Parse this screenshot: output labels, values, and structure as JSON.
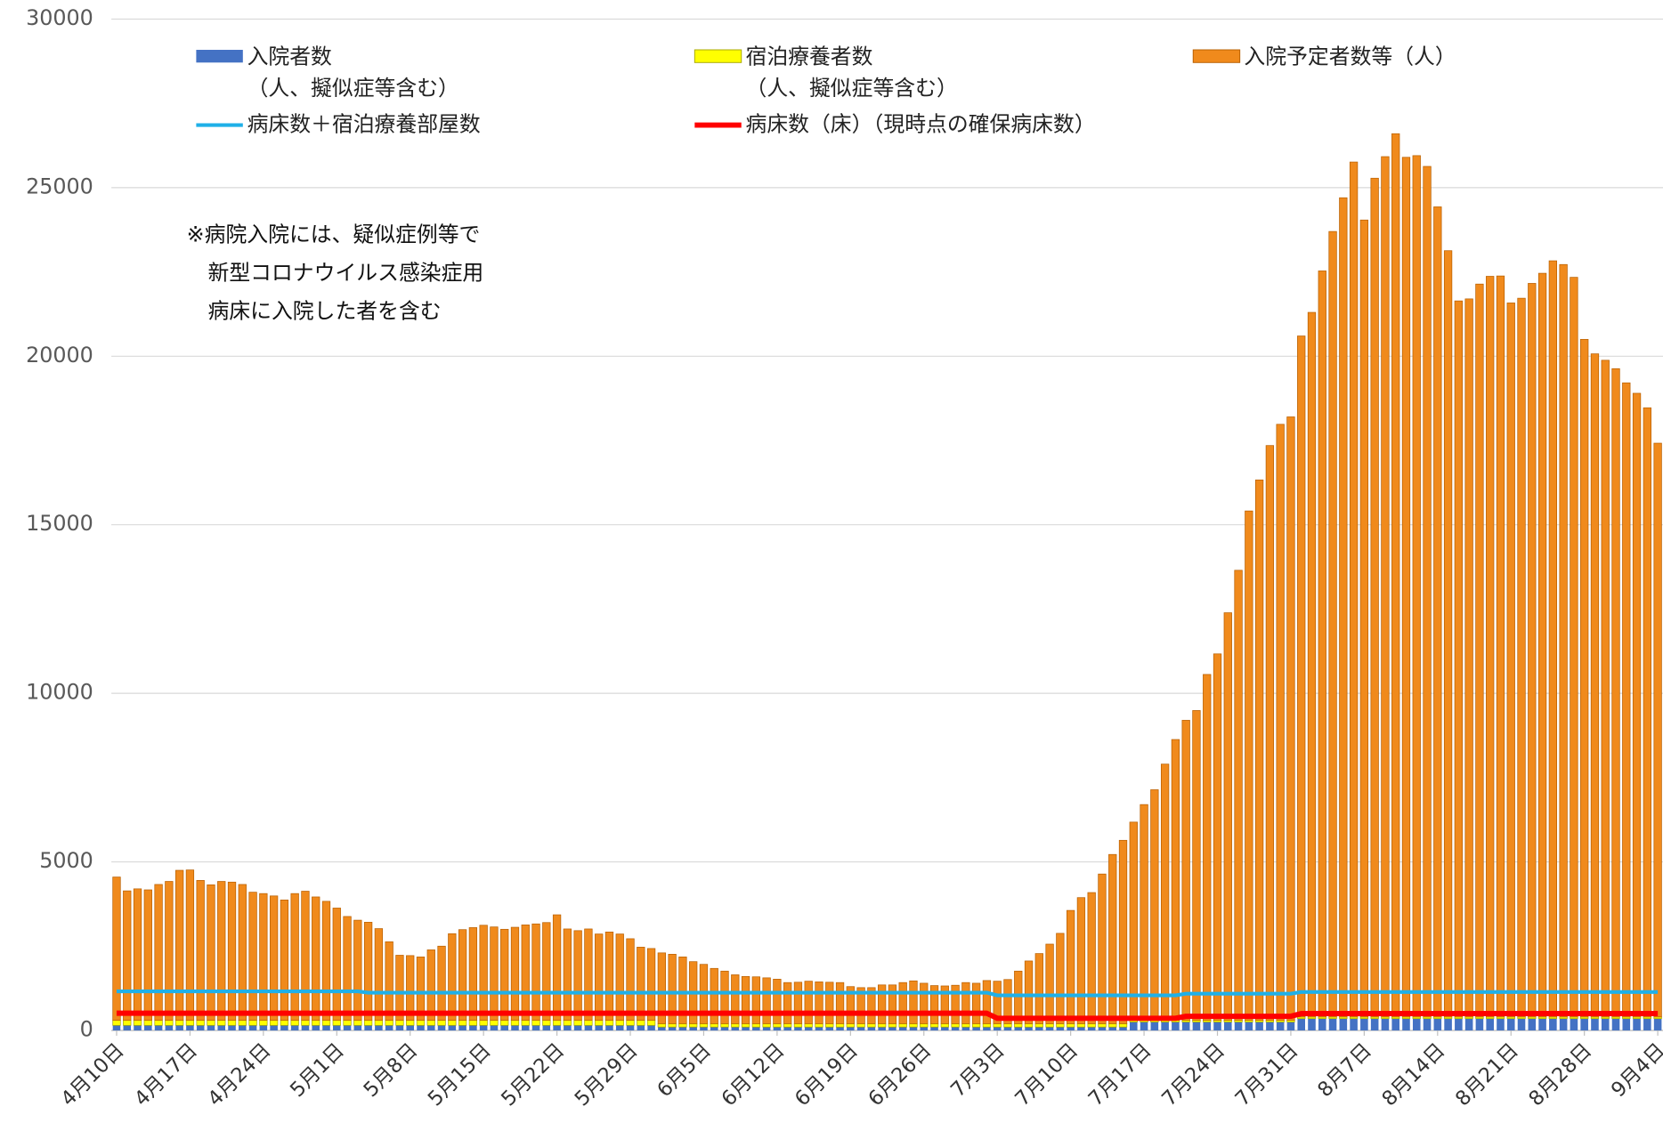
{
  "chart_data": {
    "type": "bar",
    "stacked": true,
    "annotation": "※病院入院には、疑似症例等で\n　新型コロナウイルス感染症用\n　病床に入院した者を含む",
    "ylim": [
      0,
      30000
    ],
    "yticks": [
      0,
      5000,
      10000,
      15000,
      20000,
      25000,
      30000
    ],
    "grid": true,
    "categories": [
      "4月10日",
      null,
      null,
      null,
      null,
      null,
      null,
      "4月17日",
      null,
      null,
      null,
      null,
      null,
      null,
      "4月24日",
      null,
      null,
      null,
      null,
      null,
      null,
      "5月1日",
      null,
      null,
      null,
      null,
      null,
      null,
      "5月8日",
      null,
      null,
      null,
      null,
      null,
      null,
      "5月15日",
      null,
      null,
      null,
      null,
      null,
      null,
      "5月22日",
      null,
      null,
      null,
      null,
      null,
      null,
      "5月29日",
      null,
      null,
      null,
      null,
      null,
      null,
      "6月5日",
      null,
      null,
      null,
      null,
      null,
      null,
      "6月12日",
      null,
      null,
      null,
      null,
      null,
      null,
      "6月19日",
      null,
      null,
      null,
      null,
      null,
      null,
      "6月26日",
      null,
      null,
      null,
      null,
      null,
      null,
      "7月3日",
      null,
      null,
      null,
      null,
      null,
      null,
      "7月10日",
      null,
      null,
      null,
      null,
      null,
      null,
      "7月17日",
      null,
      null,
      null,
      null,
      null,
      null,
      "7月24日",
      null,
      null,
      null,
      null,
      null,
      null,
      "7月31日",
      null,
      null,
      null,
      null,
      null,
      null,
      "8月7日",
      null,
      null,
      null,
      null,
      null,
      null,
      "8月14日",
      null,
      null,
      null,
      null,
      null,
      null,
      "8月21日",
      null,
      null,
      null,
      null,
      null,
      null,
      "8月28日",
      null,
      null,
      null,
      null,
      null,
      null,
      "9月4日"
    ],
    "series": [
      {
        "name": "入院者数\n（人、擬似症等含む）",
        "type": "bar",
        "color": "#4472c4",
        "values": [
          150,
          150,
          150,
          150,
          150,
          150,
          150,
          150,
          150,
          150,
          150,
          150,
          150,
          150,
          150,
          150,
          150,
          150,
          150,
          150,
          150,
          150,
          150,
          150,
          150,
          150,
          150,
          150,
          150,
          150,
          150,
          150,
          150,
          150,
          150,
          150,
          150,
          150,
          150,
          150,
          150,
          150,
          150,
          150,
          150,
          150,
          150,
          150,
          150,
          150,
          150,
          150,
          100,
          100,
          100,
          100,
          100,
          100,
          100,
          100,
          100,
          100,
          100,
          100,
          100,
          100,
          100,
          100,
          100,
          100,
          100,
          100,
          100,
          100,
          100,
          100,
          100,
          100,
          100,
          100,
          100,
          100,
          100,
          100,
          100,
          100,
          100,
          100,
          100,
          100,
          100,
          100,
          100,
          100,
          100,
          100,
          100,
          250,
          250,
          250,
          250,
          250,
          250,
          250,
          250,
          250,
          250,
          250,
          250,
          250,
          250,
          250,
          250,
          350,
          350,
          350,
          350,
          350,
          350,
          350,
          350,
          350,
          350,
          350,
          350,
          350,
          350,
          350,
          350,
          350,
          350,
          350,
          350,
          350,
          350,
          350,
          350,
          350,
          350,
          350,
          350,
          350,
          350,
          350,
          350,
          350,
          350,
          350
        ]
      },
      {
        "name": "宿泊療養者数\n（人、擬似症等含む）",
        "type": "bar",
        "color": "#ffff00",
        "values": [
          150,
          150,
          150,
          150,
          150,
          150,
          150,
          150,
          150,
          150,
          150,
          150,
          150,
          150,
          150,
          150,
          150,
          150,
          150,
          150,
          150,
          150,
          150,
          150,
          150,
          150,
          150,
          150,
          150,
          150,
          150,
          150,
          150,
          150,
          150,
          150,
          150,
          150,
          150,
          150,
          150,
          150,
          150,
          150,
          150,
          150,
          150,
          150,
          150,
          150,
          150,
          150,
          100,
          100,
          100,
          100,
          100,
          100,
          100,
          100,
          100,
          100,
          100,
          100,
          100,
          100,
          100,
          100,
          100,
          100,
          100,
          100,
          100,
          100,
          100,
          100,
          100,
          100,
          100,
          100,
          100,
          100,
          100,
          100,
          100,
          100,
          100,
          100,
          100,
          100,
          100,
          100,
          100,
          100,
          100,
          100,
          100,
          50,
          50,
          50,
          50,
          50,
          50,
          50,
          50,
          50,
          50,
          50,
          50,
          50,
          50,
          50,
          50,
          50,
          50,
          50,
          50,
          50,
          50,
          50,
          50,
          50,
          50,
          50,
          50,
          50,
          50,
          50,
          50,
          50,
          50,
          50,
          50,
          50,
          50,
          50,
          50,
          50,
          50,
          50,
          50,
          50,
          50,
          50,
          50,
          50,
          50,
          50
        ]
      },
      {
        "name": "入院予定者数等（人）",
        "type": "bar",
        "color": "#f08a1c",
        "values": [
          4250,
          3840,
          3900,
          3870,
          4030,
          4120,
          4450,
          4460,
          4150,
          4020,
          4120,
          4100,
          4030,
          3800,
          3760,
          3690,
          3570,
          3760,
          3830,
          3660,
          3530,
          3330,
          3080,
          2970,
          2910,
          2720,
          2330,
          1930,
          1920,
          1880,
          2090,
          2200,
          2570,
          2690,
          2750,
          2820,
          2770,
          2700,
          2760,
          2830,
          2860,
          2900,
          3130,
          2710,
          2660,
          2710,
          2560,
          2620,
          2560,
          2420,
          2170,
          2130,
          2100,
          2060,
          1980,
          1840,
          1760,
          1640,
          1560,
          1450,
          1400,
          1390,
          1360,
          1320,
          1220,
          1230,
          1260,
          1240,
          1230,
          1220,
          1100,
          1070,
          1070,
          1150,
          1150,
          1220,
          1270,
          1200,
          1130,
          1120,
          1140,
          1220,
          1200,
          1280,
          1260,
          1310,
          1560,
          1860,
          2080,
          2360,
          2680,
          3360,
          3740,
          3890,
          4440,
          5020,
          5440,
          5880,
          6400,
          6840,
          7600,
          8330,
          8900,
          9190,
          10260,
          10870,
          12090,
          13350,
          15110,
          16030,
          17050,
          17680,
          17900,
          20200,
          20900,
          22130,
          23300,
          24300,
          25360,
          23640,
          24880,
          25520,
          26200,
          25500,
          25550,
          25230,
          24030,
          22730,
          21240,
          21300,
          21740,
          21970,
          21980,
          21180,
          21320,
          21760,
          22060,
          22430,
          22320,
          21940,
          20100,
          19670,
          19480,
          19230,
          18810,
          18500,
          18070,
          17020
        ]
      },
      {
        "name": "病床数＋宿泊療養部屋数",
        "type": "line",
        "color": "#1fb0e8",
        "values": [
          1160,
          1160,
          1160,
          1160,
          1160,
          1160,
          1160,
          1160,
          1160,
          1160,
          1160,
          1160,
          1160,
          1160,
          1160,
          1160,
          1160,
          1160,
          1160,
          1160,
          1160,
          1160,
          1160,
          1160,
          1120,
          1120,
          1120,
          1120,
          1120,
          1120,
          1120,
          1120,
          1120,
          1120,
          1120,
          1120,
          1120,
          1120,
          1120,
          1120,
          1120,
          1120,
          1120,
          1120,
          1120,
          1120,
          1120,
          1120,
          1120,
          1120,
          1120,
          1120,
          1120,
          1120,
          1120,
          1120,
          1120,
          1120,
          1120,
          1120,
          1120,
          1120,
          1120,
          1120,
          1120,
          1120,
          1120,
          1120,
          1120,
          1120,
          1120,
          1120,
          1120,
          1120,
          1120,
          1120,
          1120,
          1120,
          1120,
          1120,
          1120,
          1120,
          1120,
          1120,
          1040,
          1040,
          1040,
          1040,
          1040,
          1040,
          1040,
          1040,
          1040,
          1040,
          1040,
          1040,
          1040,
          1040,
          1040,
          1040,
          1040,
          1040,
          1090,
          1090,
          1090,
          1090,
          1090,
          1090,
          1090,
          1090,
          1090,
          1090,
          1090,
          1140,
          1140,
          1140,
          1140,
          1140,
          1140,
          1140,
          1140,
          1140,
          1140,
          1140,
          1140,
          1140,
          1140,
          1140,
          1140,
          1140,
          1140,
          1140,
          1140,
          1140,
          1140,
          1140,
          1140,
          1140,
          1140,
          1140,
          1140,
          1140,
          1140,
          1140,
          1140,
          1140,
          1140,
          1140
        ]
      },
      {
        "name": "病床数（床）（現時点の確保病床数）",
        "type": "line",
        "color": "#ff0000",
        "values": [
          510,
          510,
          510,
          510,
          510,
          510,
          510,
          510,
          510,
          510,
          510,
          510,
          510,
          510,
          510,
          510,
          510,
          510,
          510,
          510,
          510,
          510,
          510,
          510,
          510,
          510,
          510,
          510,
          510,
          510,
          510,
          510,
          510,
          510,
          510,
          510,
          510,
          510,
          510,
          510,
          510,
          510,
          510,
          510,
          510,
          510,
          510,
          510,
          510,
          510,
          510,
          510,
          510,
          510,
          510,
          510,
          510,
          510,
          510,
          510,
          510,
          510,
          510,
          510,
          510,
          510,
          510,
          510,
          510,
          510,
          510,
          510,
          510,
          510,
          510,
          510,
          510,
          510,
          510,
          510,
          510,
          510,
          510,
          510,
          360,
          360,
          360,
          360,
          360,
          360,
          360,
          360,
          360,
          360,
          360,
          360,
          360,
          360,
          360,
          360,
          360,
          360,
          420,
          420,
          420,
          420,
          420,
          420,
          420,
          420,
          420,
          420,
          420,
          500,
          500,
          500,
          500,
          500,
          500,
          500,
          500,
          500,
          500,
          500,
          500,
          500,
          500,
          500,
          500,
          500,
          500,
          500,
          500,
          500,
          500,
          500,
          500,
          500,
          500,
          500,
          500,
          500,
          500,
          500,
          500,
          500,
          500,
          500
        ]
      }
    ]
  }
}
